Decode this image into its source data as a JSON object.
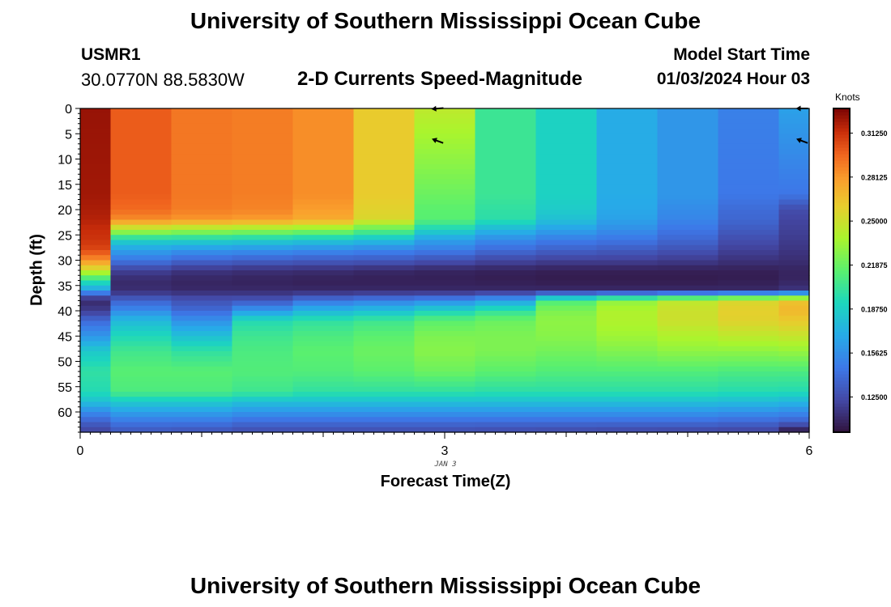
{
  "header": {
    "title": "University of Southern Mississippi Ocean Cube",
    "station_id": "USMR1",
    "coordinates": "30.0770N  88.5830W",
    "subtitle": "2-D Currents Speed-Magnitude",
    "model_start_label": "Model Start Time",
    "model_start_value": "01/03/2024 Hour 03"
  },
  "footer": {
    "title": "University of Southern Mississippi Ocean Cube"
  },
  "chart_data": {
    "type": "heatmap",
    "title": "2-D Currents Speed-Magnitude",
    "xlabel": "Forecast Time(Z)",
    "ylabel": "Depth (ft)",
    "x_date_label": "JAN 3",
    "xlim": [
      0,
      6
    ],
    "ylim": [
      64,
      0
    ],
    "y_inverted": true,
    "x_ticks": [
      0,
      3,
      6
    ],
    "x_tick_labels": [
      "0",
      "3",
      "6"
    ],
    "y_ticks": [
      0,
      5,
      10,
      15,
      20,
      25,
      30,
      35,
      40,
      45,
      50,
      55,
      60
    ],
    "colorbar": {
      "label": "Knots",
      "range": [
        0.1,
        0.33
      ],
      "ticks": [
        0.125,
        0.15625,
        0.1875,
        0.21875,
        0.25,
        0.28125,
        0.3125
      ],
      "tick_labels": [
        "0.12500",
        "0.15625",
        "0.18750",
        "0.21875",
        "0.25000",
        "0.28125",
        "0.31250"
      ],
      "colormap": "turbo"
    },
    "time_hours": [
      0.0,
      0.5,
      1.0,
      1.5,
      2.0,
      2.5,
      3.0,
      3.5,
      4.0,
      4.5,
      5.0,
      5.5,
      6.0
    ],
    "depth_knots_ft": [
      0,
      17,
      20,
      22,
      24,
      26,
      28,
      30,
      32,
      34,
      36,
      37,
      38,
      40,
      42,
      45,
      48,
      52,
      56,
      58,
      60,
      62,
      64
    ],
    "speed_knots": [
      [
        0.324,
        0.322,
        0.32,
        0.318,
        0.314,
        0.312,
        0.306,
        0.284,
        0.25,
        0.2,
        0.165,
        0.13,
        0.11,
        0.118,
        0.14,
        0.16,
        0.185,
        0.2,
        0.195,
        0.18,
        0.155,
        0.135,
        0.12
      ],
      [
        0.3,
        0.3,
        0.296,
        0.285,
        0.24,
        0.19,
        0.165,
        0.145,
        0.12,
        0.11,
        0.112,
        0.123,
        0.136,
        0.155,
        0.177,
        0.193,
        0.206,
        0.214,
        0.21,
        0.185,
        0.165,
        0.145,
        0.13
      ],
      [
        0.292,
        0.292,
        0.29,
        0.282,
        0.235,
        0.19,
        0.16,
        0.138,
        0.115,
        0.108,
        0.11,
        0.12,
        0.128,
        0.14,
        0.158,
        0.18,
        0.2,
        0.214,
        0.21,
        0.185,
        0.165,
        0.145,
        0.128
      ],
      [
        0.29,
        0.29,
        0.288,
        0.28,
        0.232,
        0.188,
        0.158,
        0.135,
        0.113,
        0.107,
        0.11,
        0.12,
        0.13,
        0.162,
        0.195,
        0.205,
        0.21,
        0.212,
        0.205,
        0.18,
        0.16,
        0.14,
        0.125
      ],
      [
        0.285,
        0.285,
        0.28,
        0.275,
        0.228,
        0.185,
        0.155,
        0.133,
        0.112,
        0.106,
        0.11,
        0.125,
        0.145,
        0.175,
        0.2,
        0.21,
        0.215,
        0.212,
        0.2,
        0.18,
        0.16,
        0.14,
        0.125
      ],
      [
        0.262,
        0.262,
        0.258,
        0.255,
        0.215,
        0.18,
        0.152,
        0.132,
        0.11,
        0.106,
        0.11,
        0.128,
        0.15,
        0.18,
        0.205,
        0.215,
        0.22,
        0.215,
        0.2,
        0.18,
        0.16,
        0.14,
        0.125
      ],
      [
        0.245,
        0.22,
        0.215,
        0.214,
        0.19,
        0.165,
        0.148,
        0.128,
        0.108,
        0.106,
        0.11,
        0.13,
        0.155,
        0.19,
        0.215,
        0.225,
        0.228,
        0.22,
        0.2,
        0.18,
        0.16,
        0.14,
        0.125
      ],
      [
        0.204,
        0.204,
        0.2,
        0.198,
        0.175,
        0.155,
        0.14,
        0.123,
        0.107,
        0.105,
        0.11,
        0.138,
        0.165,
        0.2,
        0.22,
        0.225,
        0.225,
        0.215,
        0.198,
        0.18,
        0.16,
        0.14,
        0.124
      ],
      [
        0.19,
        0.19,
        0.186,
        0.18,
        0.165,
        0.148,
        0.135,
        0.12,
        0.106,
        0.104,
        0.11,
        0.16,
        0.21,
        0.225,
        0.23,
        0.228,
        0.222,
        0.212,
        0.198,
        0.18,
        0.16,
        0.14,
        0.123
      ],
      [
        0.17,
        0.17,
        0.168,
        0.165,
        0.156,
        0.145,
        0.132,
        0.12,
        0.106,
        0.104,
        0.11,
        0.17,
        0.23,
        0.24,
        0.24,
        0.235,
        0.226,
        0.212,
        0.198,
        0.18,
        0.16,
        0.14,
        0.122
      ],
      [
        0.16,
        0.16,
        0.155,
        0.152,
        0.145,
        0.138,
        0.128,
        0.118,
        0.106,
        0.104,
        0.11,
        0.18,
        0.245,
        0.25,
        0.25,
        0.24,
        0.23,
        0.212,
        0.198,
        0.18,
        0.16,
        0.14,
        0.121
      ],
      [
        0.15,
        0.146,
        0.14,
        0.138,
        0.132,
        0.126,
        0.12,
        0.114,
        0.106,
        0.105,
        0.11,
        0.19,
        0.255,
        0.26,
        0.258,
        0.245,
        0.23,
        0.21,
        0.196,
        0.178,
        0.158,
        0.138,
        0.12
      ],
      [
        0.165,
        0.145,
        0.125,
        0.122,
        0.12,
        0.118,
        0.115,
        0.112,
        0.108,
        0.108,
        0.115,
        0.2,
        0.265,
        0.27,
        0.262,
        0.248,
        0.232,
        0.21,
        0.195,
        0.175,
        0.155,
        0.135,
        0.1
      ]
    ],
    "direction_arrows": [
      {
        "time": 2.95,
        "depth": 0.0,
        "angle_deg": 175
      },
      {
        "time": 2.95,
        "depth": 6.5,
        "angle_deg": 200
      },
      {
        "time": 5.95,
        "depth": 0.0,
        "angle_deg": 180
      },
      {
        "time": 5.95,
        "depth": 6.5,
        "angle_deg": 200
      }
    ],
    "grid": false
  }
}
